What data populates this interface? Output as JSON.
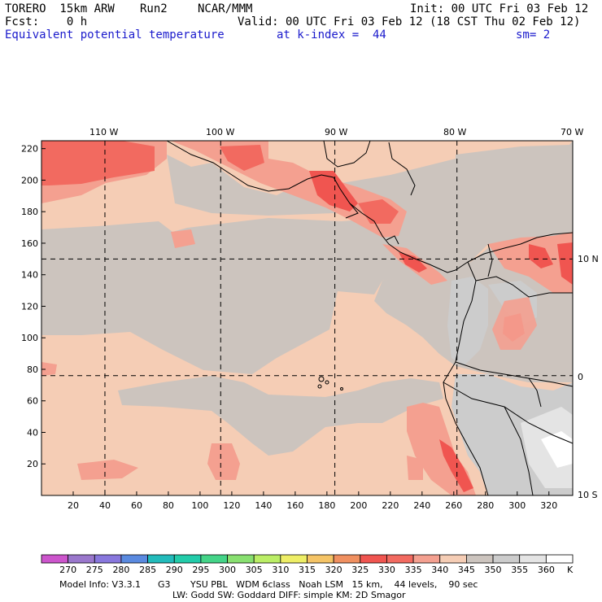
{
  "header": {
    "model": "TORERO  15km ARW",
    "run": "Run2",
    "org": "NCAR/MMM",
    "init": "Init: 00 UTC Fri 03 Feb 12",
    "fcst": "Fcst:    0 h",
    "valid": "Valid: 00 UTC Fri 03 Feb 12 (18 CST Thu 02 Feb 12)",
    "field": "Equivalent potential temperature",
    "level": "at k-index =  44",
    "smooth": "sm= 2"
  },
  "map": {
    "lon_labels": [
      "110 W",
      "100 W",
      "90 W",
      "80 W",
      "70 W"
    ],
    "lat_labels": [
      "10 N",
      "0",
      "10 S"
    ],
    "y_ticks": [
      "20",
      "40",
      "60",
      "80",
      "100",
      "120",
      "140",
      "160",
      "180",
      "200",
      "220"
    ],
    "x_ticks": [
      "20",
      "40",
      "60",
      "80",
      "100",
      "120",
      "140",
      "160",
      "180",
      "200",
      "220",
      "240",
      "260",
      "280",
      "300",
      "320"
    ],
    "grid_x": [
      40,
      113,
      185,
      262
    ],
    "grid_y": [
      76,
      150
    ],
    "nx": 335,
    "ny": 225
  },
  "colorbar": {
    "labels": [
      "270",
      "275",
      "280",
      "285",
      "290",
      "295",
      "300",
      "305",
      "310",
      "315",
      "320",
      "325",
      "330",
      "335",
      "340",
      "345",
      "350",
      "355",
      "360"
    ],
    "unit": "K",
    "colors": [
      "#cc55cc",
      "#9a77cc",
      "#8877dd",
      "#5a8ae0",
      "#22bbbb",
      "#22ccaa",
      "#44d488",
      "#88e070",
      "#bbee66",
      "#eeee66",
      "#f5c466",
      "#f09060",
      "#f05550",
      "#f26a60",
      "#f4a090",
      "#f5cdb5",
      "#ccc4be",
      "#cccccc",
      "#e4e4e4",
      "#ffffff"
    ]
  },
  "footer": {
    "line1": "Model Info: V3.3.1      G3       YSU PBL   WDM 6class   Noah LSM   15 km,    44 levels,    90 sec",
    "line2": "LW: Godd SW: Goddard DIFF: simple KM: 2D Smagor"
  }
}
